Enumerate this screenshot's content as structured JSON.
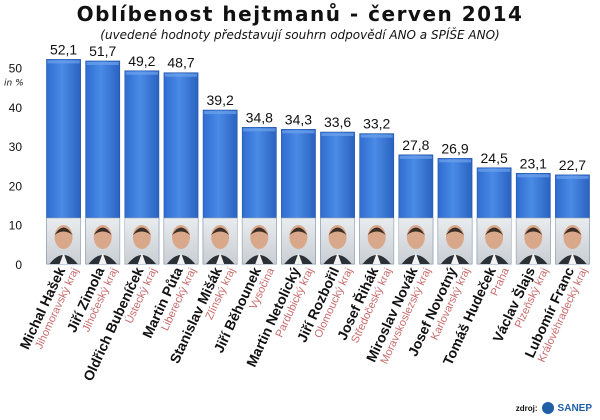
{
  "title": "Oblíbenost hejtmanů - červen 2014",
  "subtitle": "(uvedené hodnoty představují souhrn odpovědí ANO a SPÍŠE ANO)",
  "source": {
    "label": "zdroj:",
    "logo_text": "SANEP"
  },
  "colors": {
    "bar": "#3a79d8",
    "bar_light": "#6fa3ec",
    "region_text": "#c86b6b",
    "name_text": "#111111"
  },
  "chart_data": {
    "type": "bar",
    "title": "Oblíbenost hejtmanů - červen 2014",
    "subtitle": "(uvedené hodnoty představují souhrn odpovědí ANO a SPÍŠE ANO)",
    "ylabel": "in %",
    "ylim": [
      0,
      55
    ],
    "yticks": [
      0,
      10,
      20,
      30,
      40,
      50
    ],
    "grid": false,
    "categories": [
      "Michal Hašek",
      "Jiří Zimola",
      "Oldřich Bubeníček",
      "Martin Půta",
      "Stanislav Mišák",
      "Jiří Běhounek",
      "Martin Netolický",
      "Jiří Rozbořil",
      "Josef Řihák",
      "Miroslav Novák",
      "Josef Novotný",
      "Tomáš Hudeček",
      "Václav Šlajs",
      "Lubomír Franc"
    ],
    "regions": [
      "Jihomoravský kraj",
      "Jihočeský kraj",
      "Ústecký kraj",
      "Liberecký kraj",
      "Zlínský kraj",
      "Vysočina",
      "Pardubický kraj",
      "Olomoucký kraj",
      "Středočeský kraj",
      "Moravskoslezský kraj",
      "Karlovarský kraj",
      "Praha",
      "Plzeňský kraj",
      "Královéhradecký kraj"
    ],
    "values": [
      52.1,
      51.7,
      49.2,
      48.7,
      39.2,
      34.8,
      34.3,
      33.6,
      33.2,
      27.8,
      26.9,
      24.5,
      23.1,
      22.7
    ],
    "value_labels": [
      "52,1",
      "51,7",
      "49,2",
      "48,7",
      "39,2",
      "34,8",
      "34,3",
      "33,6",
      "33,2",
      "27,8",
      "26,9",
      "24,5",
      "23,1",
      "22,7"
    ]
  }
}
